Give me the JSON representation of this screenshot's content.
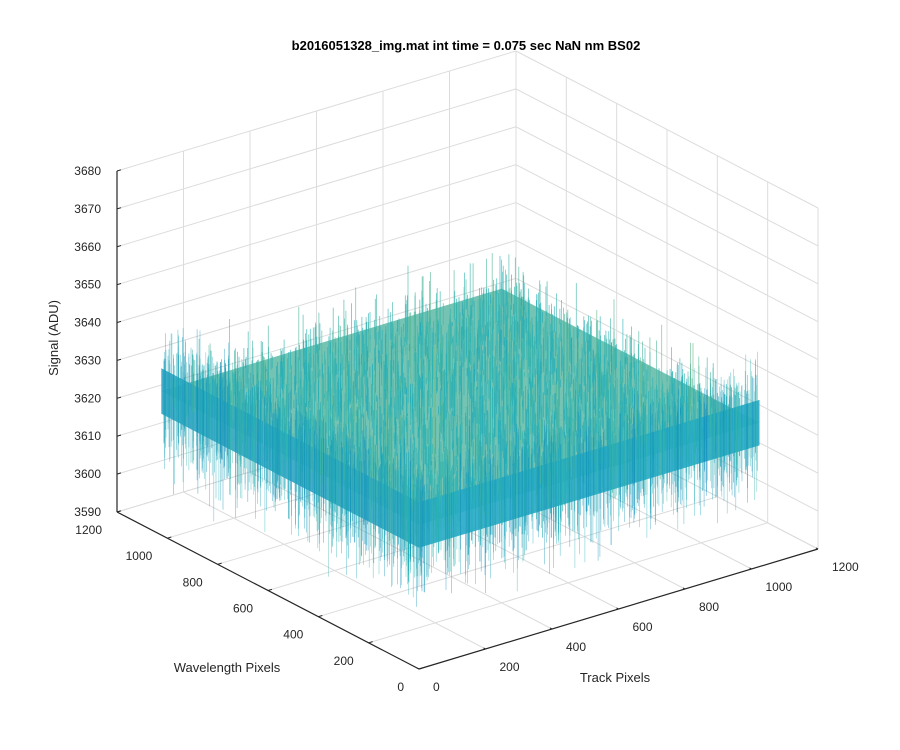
{
  "chart_data": {
    "type": "surface",
    "title": "b2016051328_img.mat int time = 0.075 sec  NaN nm BS02",
    "xlabel": "Track Pixels",
    "ylabel": "Wavelength Pixels",
    "zlabel": "Signal (ADU)",
    "xlim": [
      0,
      1200
    ],
    "ylim": [
      0,
      1200
    ],
    "zlim": [
      3590,
      3680
    ],
    "x_ticks": [
      "0",
      "200",
      "400",
      "600",
      "800",
      "1000",
      "1200"
    ],
    "y_ticks": [
      "0",
      "200",
      "400",
      "600",
      "800",
      "1000",
      "1200"
    ],
    "z_ticks": [
      "3590",
      "3600",
      "3610",
      "3620",
      "3630",
      "3640",
      "3650",
      "3660",
      "3670",
      "3680"
    ],
    "grid": true,
    "surface": {
      "x_extent": [
        0,
        1024
      ],
      "y_extent": [
        0,
        1024
      ],
      "mean": 3628,
      "noise_min": 3597,
      "noise_max": 3672,
      "colormap": "parula"
    },
    "colors": {
      "low": "#0072BD",
      "mid": "#26B3B8",
      "high": "#E3C73A",
      "grid": "#DCDCDC",
      "axis": "#262626"
    }
  }
}
